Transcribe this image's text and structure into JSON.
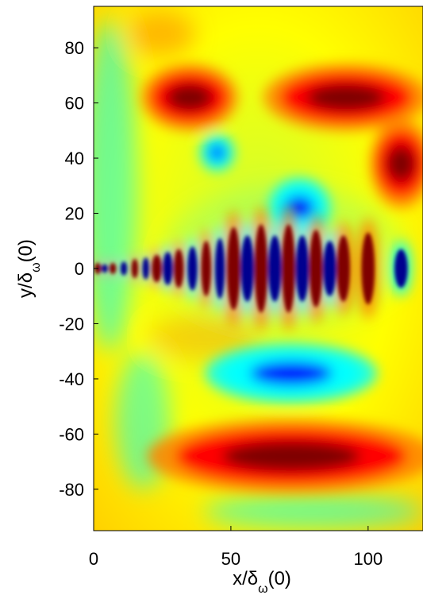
{
  "chart_data": {
    "type": "heatmap",
    "title": "",
    "colormap": "jet",
    "colors": {
      "dark_red": "#7f0000",
      "red": "#ff0000",
      "orange": "#ff8000",
      "yellow": "#ffff00",
      "green": "#80ff80",
      "cyan": "#00ffff",
      "blue": "#0000ff",
      "dark_blue": "#00008f"
    },
    "xlabel": {
      "main": "x/δ",
      "sub": "ω",
      "suffix": "(0)"
    },
    "ylabel": {
      "main": "y/δ",
      "sub": "ω",
      "suffix": "(0)"
    },
    "xlim": [
      0,
      120
    ],
    "ylim": [
      -95,
      95
    ],
    "x_ticks": [
      {
        "value": 0,
        "label": "0"
      },
      {
        "value": 50,
        "label": "50"
      },
      {
        "value": 100,
        "label": "100"
      }
    ],
    "y_ticks": [
      {
        "value": 80,
        "label": "80"
      },
      {
        "value": 60,
        "label": "60"
      },
      {
        "value": 40,
        "label": "40"
      },
      {
        "value": 20,
        "label": "20"
      },
      {
        "value": 0,
        "label": "0"
      },
      {
        "value": -20,
        "label": "-20"
      },
      {
        "value": -40,
        "label": "-40"
      },
      {
        "value": -60,
        "label": "-60"
      },
      {
        "value": -80,
        "label": "-80"
      }
    ],
    "features": [
      {
        "kind": "red",
        "x": 35,
        "y": 62,
        "rx": 14,
        "ry": 9
      },
      {
        "kind": "red",
        "x": 92,
        "y": 62,
        "rx": 24,
        "ry": 9
      },
      {
        "kind": "red",
        "x": 112,
        "y": 38,
        "rx": 9,
        "ry": 12
      },
      {
        "kind": "blue",
        "x": 45,
        "y": 42,
        "rx": 5,
        "ry": 5
      },
      {
        "kind": "blue",
        "x": 75,
        "y": 22,
        "rx": 9,
        "ry": 8
      },
      {
        "kind": "blue",
        "x": 72,
        "y": -38,
        "rx": 25,
        "ry": 8
      },
      {
        "kind": "red",
        "x": 72,
        "y": -68,
        "rx": 42,
        "ry": 10
      }
    ],
    "jet_core": {
      "x_range": [
        0,
        120
      ],
      "structures": [
        {
          "x": 1.5,
          "sign": 1,
          "half_height": 2
        },
        {
          "x": 4,
          "sign": -1,
          "half_height": 1.5
        },
        {
          "x": 7,
          "sign": 1,
          "half_height": 2
        },
        {
          "x": 11,
          "sign": -1,
          "half_height": 2.5
        },
        {
          "x": 15,
          "sign": 1,
          "half_height": 3.5
        },
        {
          "x": 19,
          "sign": -1,
          "half_height": 4
        },
        {
          "x": 23,
          "sign": 1,
          "half_height": 5
        },
        {
          "x": 27,
          "sign": -1,
          "half_height": 6
        },
        {
          "x": 31,
          "sign": 1,
          "half_height": 7
        },
        {
          "x": 36,
          "sign": -1,
          "half_height": 8
        },
        {
          "x": 41,
          "sign": 1,
          "half_height": 10
        },
        {
          "x": 46,
          "sign": -1,
          "half_height": 11
        },
        {
          "x": 51,
          "sign": 1,
          "half_height": 15
        },
        {
          "x": 56,
          "sign": -1,
          "half_height": 12
        },
        {
          "x": 61,
          "sign": 1,
          "half_height": 16
        },
        {
          "x": 66,
          "sign": -1,
          "half_height": 12
        },
        {
          "x": 71,
          "sign": 1,
          "half_height": 16
        },
        {
          "x": 76,
          "sign": -1,
          "half_height": 12
        },
        {
          "x": 81,
          "sign": 1,
          "half_height": 14
        },
        {
          "x": 86,
          "sign": -1,
          "half_height": 10
        },
        {
          "x": 91,
          "sign": 1,
          "half_height": 12
        },
        {
          "x": 100,
          "sign": 1,
          "half_height": 13
        },
        {
          "x": 112,
          "sign": -1,
          "half_height": 7
        }
      ]
    }
  }
}
